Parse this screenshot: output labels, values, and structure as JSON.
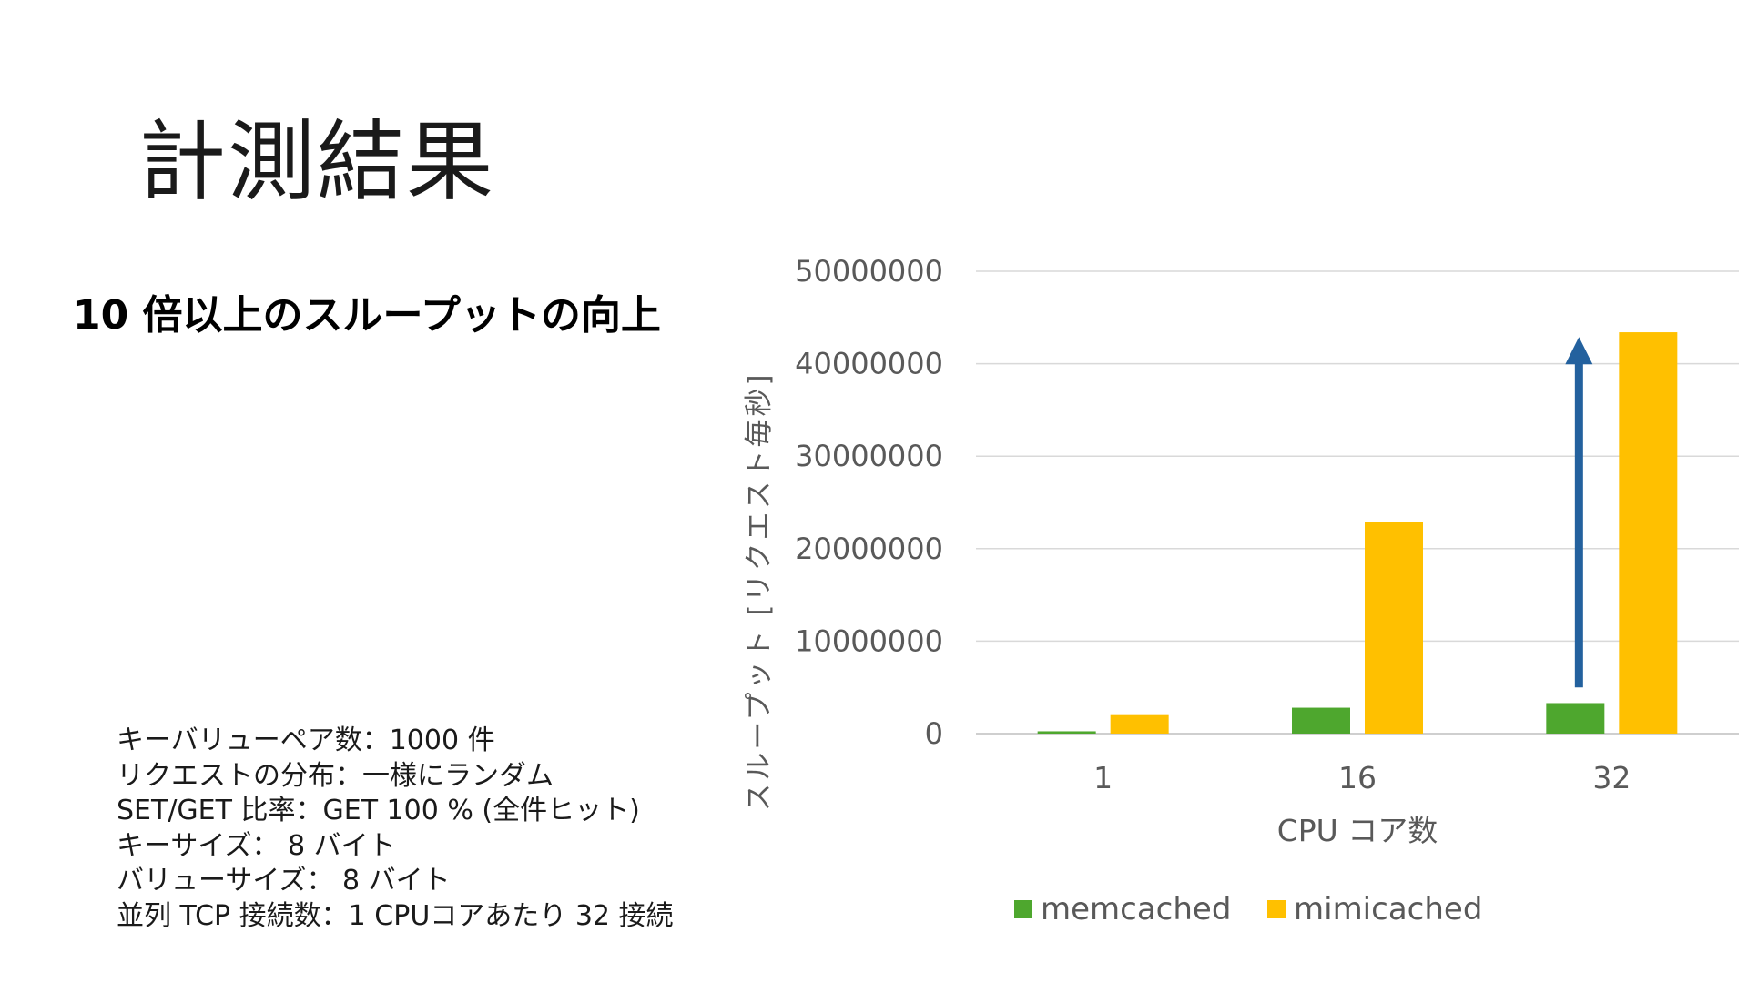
{
  "slide": {
    "title": "計測結果",
    "headline": "10 倍以上のスループットの向上",
    "conditions": [
      "キーバリューペア数：1000 件",
      "リクエストの分布：一様にランダム",
      "SET/GET 比率：GET 100 % (全件ヒット)",
      "キーサイズ： 8 バイト",
      "バリューサイズ： 8 バイト",
      "並列 TCP 接続数：1 CPUコアあたり 32 接続"
    ]
  },
  "chart_data": {
    "type": "bar",
    "categories": [
      "1",
      "16",
      "32"
    ],
    "series": [
      {
        "name": "memcached",
        "color": "#4EA72E",
        "values": [
          250000,
          2800000,
          3300000
        ]
      },
      {
        "name": "mimicached",
        "color": "#FFC000",
        "values": [
          2000000,
          22900000,
          43400000
        ]
      }
    ],
    "yticks": [
      "0",
      "10000000",
      "20000000",
      "30000000",
      "40000000",
      "50000000"
    ],
    "ylim": [
      0,
      50000000
    ],
    "xlabel": "CPU コア数",
    "ylabel": "スループット [リクエスト毎秒]",
    "legend_position": "bottom",
    "grid": true,
    "annotation": {
      "type": "arrow",
      "category": "32",
      "from_value": 5000000,
      "to_value": 42500000,
      "color": "#23619E"
    }
  }
}
